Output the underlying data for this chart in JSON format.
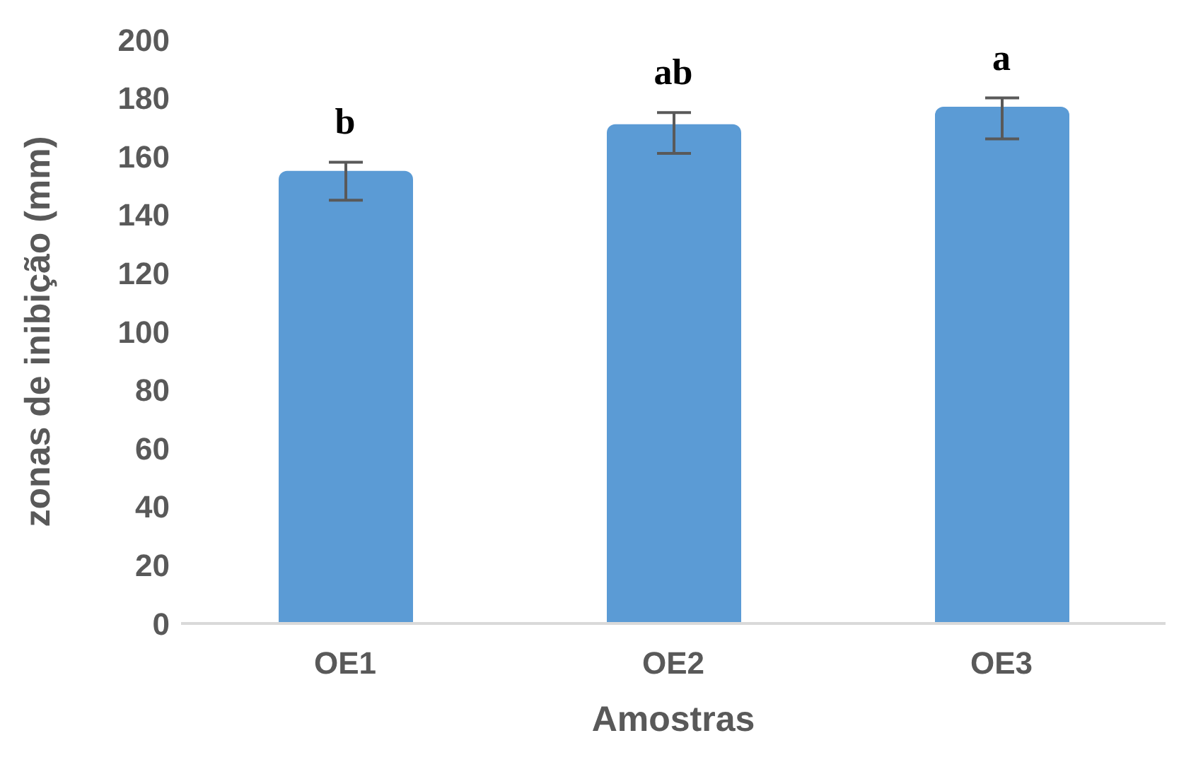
{
  "chart_data": {
    "type": "bar",
    "xlabel": "Amostras",
    "ylabel": "zonas de inibição (mm)",
    "categories": [
      "OE1",
      "OE2",
      "OE3"
    ],
    "values": [
      155,
      171,
      177
    ],
    "errors": [
      [
        145,
        158
      ],
      [
        161,
        175
      ],
      [
        166,
        180
      ]
    ],
    "color": "#5b9bd5",
    "ylim": [
      0,
      200
    ],
    "yticks": [
      0,
      20,
      40,
      60,
      80,
      100,
      120,
      140,
      160,
      180,
      200
    ],
    "grid": false,
    "annotations": [
      "b",
      "ab",
      "a"
    ]
  }
}
